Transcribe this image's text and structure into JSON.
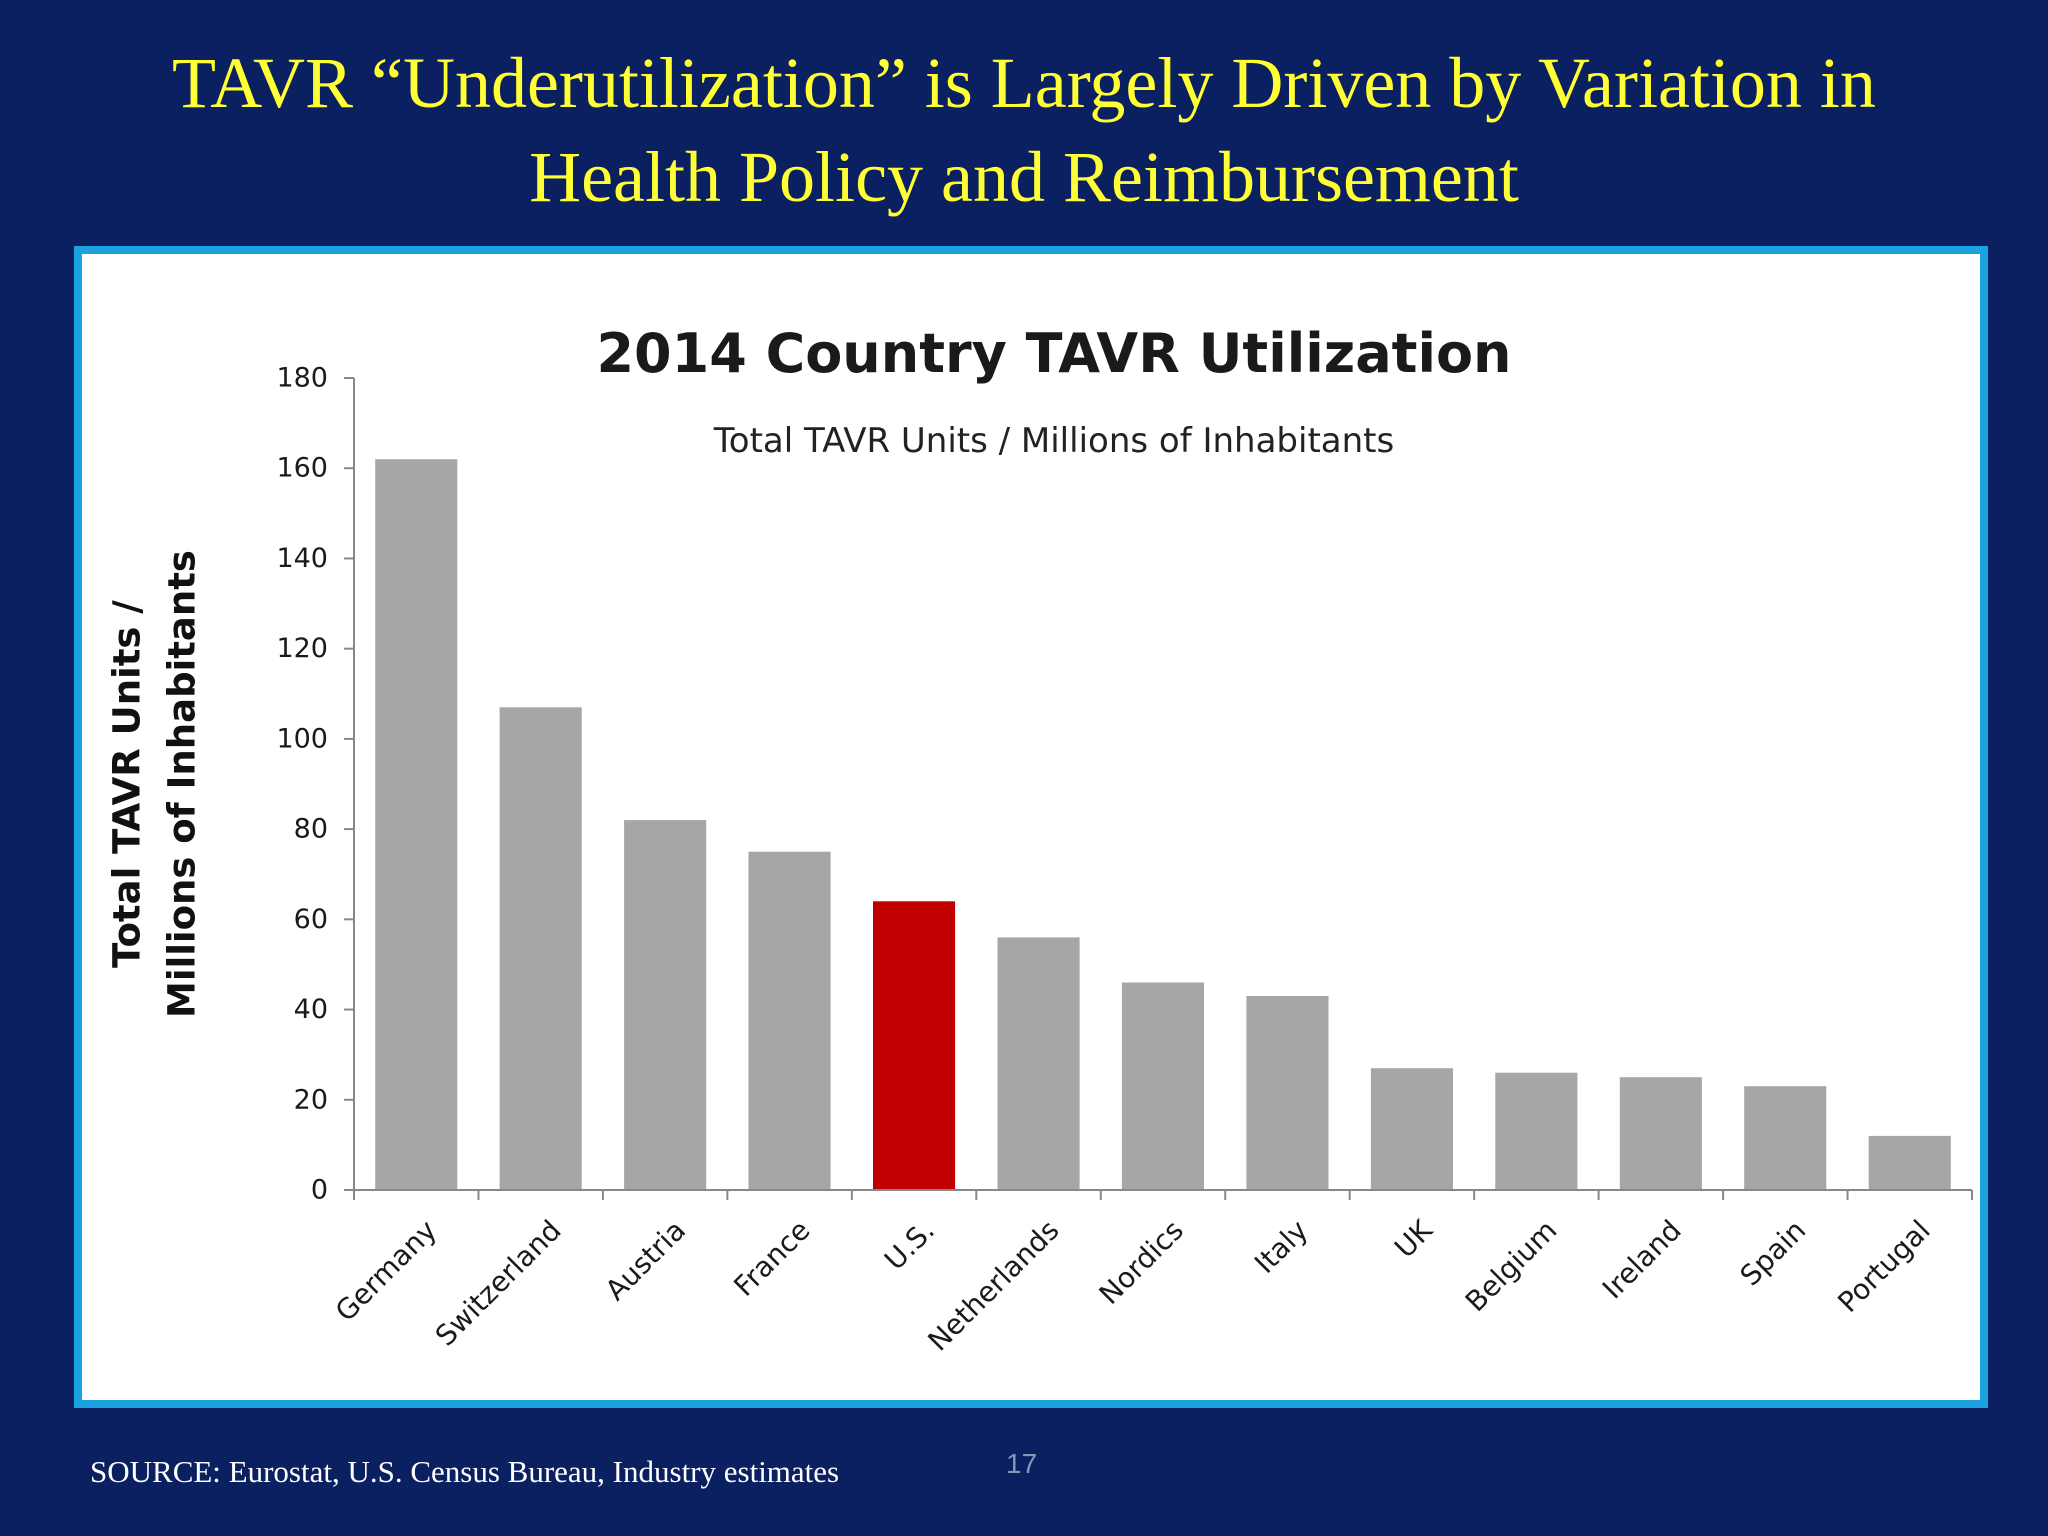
{
  "slide": {
    "title_line1": "TAVR “Underutilization” is Largely Driven by Variation in",
    "title_line2": "Health Policy and Reimbursement",
    "source": "SOURCE: Eurostat, U.S. Census Bureau, Industry estimates",
    "page_number": "17"
  },
  "colors": {
    "background": "#0b2060",
    "title": "#ffff33",
    "frame_border": "#1aa3e0",
    "bar_default": "#a6a6a8",
    "bar_highlight": "#c00000"
  },
  "chart_data": {
    "type": "bar",
    "title": "2014 Country TAVR Utilization",
    "subtitle": "Total TAVR Units / Millions of Inhabitants",
    "ylabel_line1": "Total TAVR Units /",
    "ylabel_line2": "Millions of Inhabitants",
    "xlabel": "",
    "categories": [
      "Germany",
      "Switzerland",
      "Austria",
      "France",
      "U.S.",
      "Netherlands",
      "Nordics",
      "Italy",
      "UK",
      "Belgium",
      "Ireland",
      "Spain",
      "Portugal"
    ],
    "values": [
      162,
      107,
      82,
      75,
      64,
      56,
      46,
      43,
      27,
      26,
      25,
      23,
      12
    ],
    "highlight": "U.S.",
    "ylim": [
      0,
      180
    ],
    "yticks": [
      0,
      20,
      40,
      60,
      80,
      100,
      120,
      140,
      160,
      180
    ],
    "grid": false,
    "legend": "none"
  }
}
